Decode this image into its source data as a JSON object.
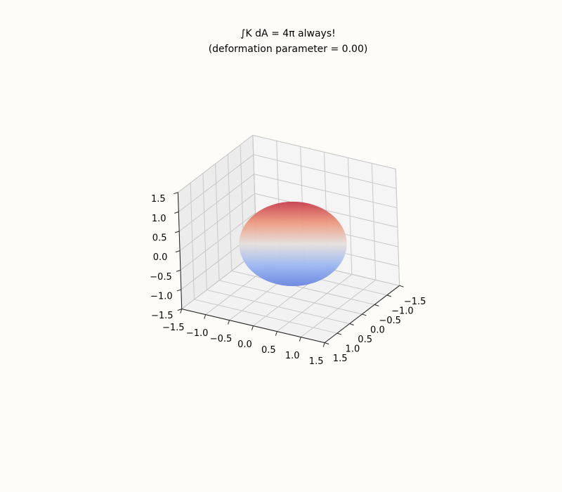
{
  "chart_data": {
    "type": "surface3d",
    "title": "∫K dA = 4π always!",
    "subtitle": "(deformation parameter = 0.00)",
    "surface": {
      "shape": "sphere",
      "radius": 1,
      "colormap": "coolwarm"
    },
    "xlim": [
      -1.5,
      1.5
    ],
    "ylim": [
      -1.5,
      1.5
    ],
    "zlim": [
      -1.5,
      1.5
    ],
    "xticks": [
      {
        "value": -1.5,
        "label": "−1.5"
      },
      {
        "value": -1,
        "label": "−1.0"
      },
      {
        "value": -0.5,
        "label": "−0.5"
      },
      {
        "value": 0,
        "label": "0.0"
      },
      0.5,
      {
        "value": 1,
        "label": "1.0"
      },
      1.5
    ],
    "yticks": [
      {
        "value": -1.5,
        "label": "−1.5"
      },
      {
        "value": -1,
        "label": "−1.0"
      },
      {
        "value": -0.5,
        "label": "−0.5"
      },
      {
        "value": 0,
        "label": "0.0"
      },
      0.5,
      {
        "value": 1,
        "label": "1.0"
      },
      1.5
    ],
    "zticks": [
      {
        "value": -1.5,
        "label": "−1.5"
      },
      {
        "value": -1,
        "label": "−1.0"
      },
      {
        "value": -0.5,
        "label": "−0.5"
      },
      {
        "value": 0,
        "label": "0.0"
      },
      0.5,
      {
        "value": 1,
        "label": "1.0"
      },
      1.5
    ],
    "grid": true
  }
}
